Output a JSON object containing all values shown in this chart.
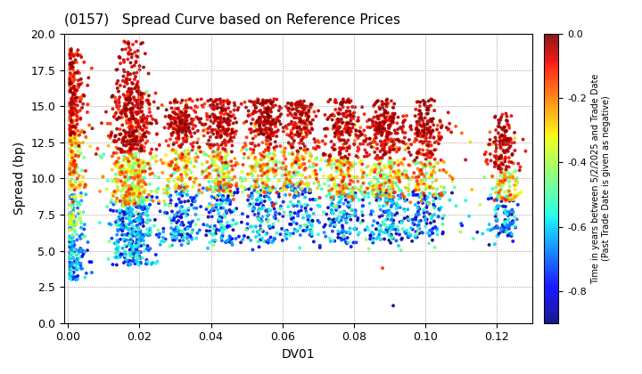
{
  "title": "(0157)   Spread Curve based on Reference Prices",
  "xlabel": "DV01",
  "ylabel": "Spread (bp)",
  "colorbar_label": "Time in years between 5/2/2025 and Trade Date\n(Past Trade Date is given as negative)",
  "xlim": [
    -0.001,
    0.13
  ],
  "ylim": [
    0.0,
    20.0
  ],
  "xticks": [
    0.0,
    0.02,
    0.04,
    0.06,
    0.08,
    0.1,
    0.12
  ],
  "yticks": [
    0.0,
    2.5,
    5.0,
    7.5,
    10.0,
    12.5,
    15.0,
    17.5,
    20.0
  ],
  "clim": [
    -0.9,
    0.0
  ],
  "cmap": "jet",
  "marker_size": 8,
  "alpha": 0.9,
  "background_color": "#ffffff",
  "grid_color": "#999999",
  "grid_style": "dotted",
  "figsize": [
    7.2,
    4.2
  ],
  "dpi": 100
}
